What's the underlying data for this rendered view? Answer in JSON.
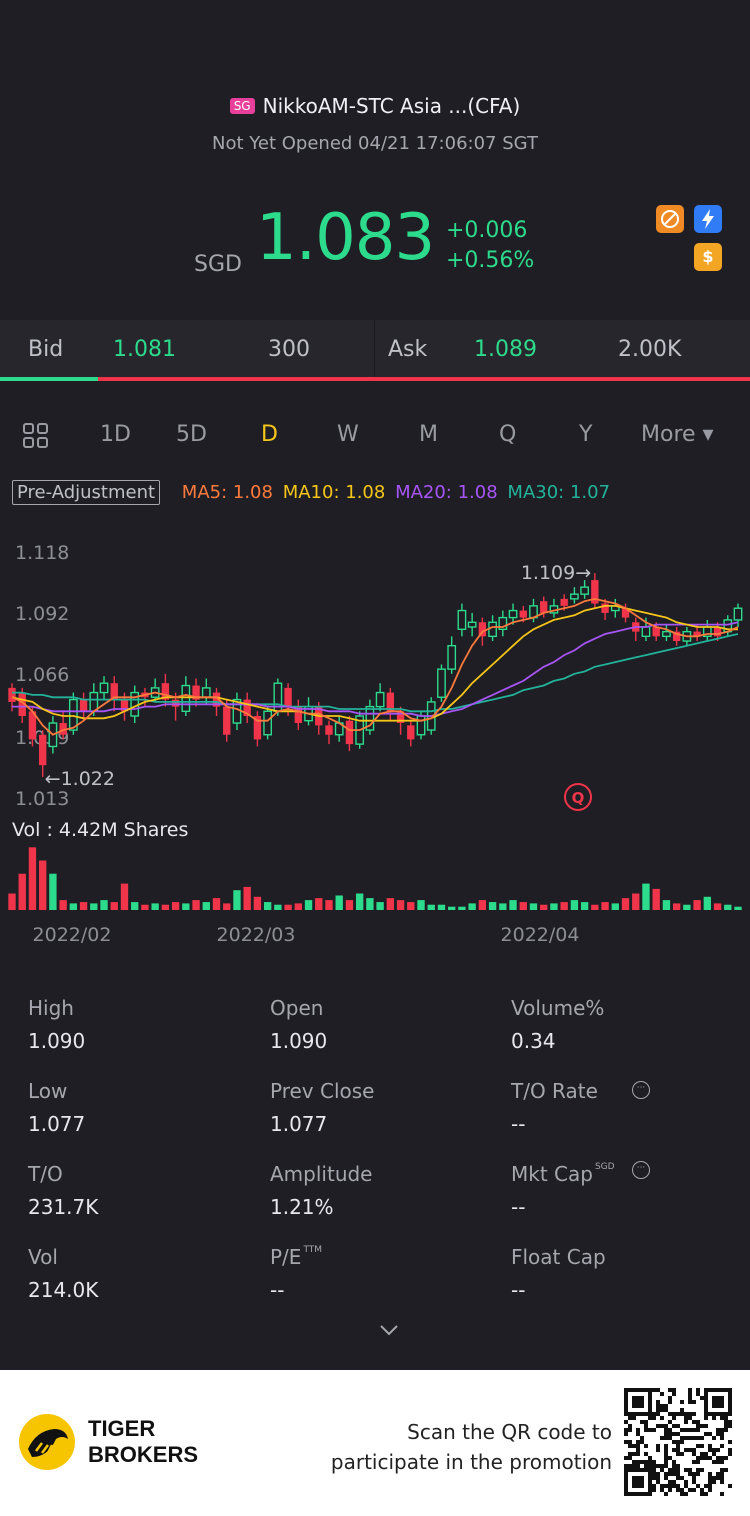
{
  "header": {
    "market_badge": "SG",
    "title": "NikkoAM-STC Asia ...(CFA)",
    "status": "Not Yet Opened 04/21 17:06:07 SGT",
    "currency": "SGD",
    "price": "1.083",
    "change": "+0.006",
    "change_pct": "+0.56%",
    "icons": [
      "no-shorting-icon",
      "flash-icon",
      "dollar-icon"
    ]
  },
  "bid_ask": {
    "bid_label": "Bid",
    "bid_price": "1.081",
    "bid_size": "300",
    "ask_label": "Ask",
    "ask_price": "1.089",
    "ask_size": "2.00K",
    "bid_ratio": 0.13
  },
  "chart_tabs": {
    "items": [
      "1D",
      "5D",
      "D",
      "W",
      "M",
      "Q",
      "Y",
      "More ▾"
    ],
    "active": "D"
  },
  "ma": {
    "pre_adjustment": "Pre-Adjustment",
    "ma5": "MA5: 1.08",
    "ma10": "MA10: 1.08",
    "ma20": "MA20: 1.08",
    "ma30": "MA30: 1.07"
  },
  "colors": {
    "up": "#2ddb8c",
    "down": "#f0344a",
    "ma5": "#ff7a3c",
    "ma10": "#f5c518",
    "ma20": "#a855f7",
    "ma30": "#22b39a",
    "accent": "#f5c518"
  },
  "chart_data": {
    "type": "candlestick",
    "y_ticks": [
      "1.118",
      "1.092",
      "1.066",
      "1.039",
      "1.013"
    ],
    "ylim": [
      1.013,
      1.118
    ],
    "x_ticks": [
      "2022/02",
      "2022/03",
      "2022/04"
    ],
    "high_label": "1.109",
    "low_label": "1.022",
    "volume_label": "Vol  : 4.42M Shares",
    "candles": [
      {
        "o": 1.06,
        "c": 1.054,
        "h": 1.062,
        "l": 1.05
      },
      {
        "o": 1.058,
        "c": 1.048,
        "h": 1.06,
        "l": 1.045
      },
      {
        "o": 1.05,
        "c": 1.038,
        "h": 1.052,
        "l": 1.035
      },
      {
        "o": 1.04,
        "c": 1.027,
        "h": 1.042,
        "l": 1.022
      },
      {
        "o": 1.035,
        "c": 1.045,
        "h": 1.048,
        "l": 1.032
      },
      {
        "o": 1.045,
        "c": 1.04,
        "h": 1.05,
        "l": 1.038
      },
      {
        "o": 1.042,
        "c": 1.055,
        "h": 1.058,
        "l": 1.04
      },
      {
        "o": 1.055,
        "c": 1.05,
        "h": 1.058,
        "l": 1.046
      },
      {
        "o": 1.05,
        "c": 1.058,
        "h": 1.062,
        "l": 1.048
      },
      {
        "o": 1.058,
        "c": 1.062,
        "h": 1.065,
        "l": 1.055
      },
      {
        "o": 1.062,
        "c": 1.055,
        "h": 1.065,
        "l": 1.05
      },
      {
        "o": 1.055,
        "c": 1.05,
        "h": 1.058,
        "l": 1.046
      },
      {
        "o": 1.048,
        "c": 1.058,
        "h": 1.061,
        "l": 1.045
      },
      {
        "o": 1.058,
        "c": 1.056,
        "h": 1.06,
        "l": 1.052
      },
      {
        "o": 1.056,
        "c": 1.06,
        "h": 1.064,
        "l": 1.054
      },
      {
        "o": 1.062,
        "c": 1.055,
        "h": 1.066,
        "l": 1.052
      },
      {
        "o": 1.055,
        "c": 1.052,
        "h": 1.058,
        "l": 1.046
      },
      {
        "o": 1.05,
        "c": 1.061,
        "h": 1.065,
        "l": 1.048
      },
      {
        "o": 1.061,
        "c": 1.055,
        "h": 1.064,
        "l": 1.052
      },
      {
        "o": 1.056,
        "c": 1.06,
        "h": 1.064,
        "l": 1.053
      },
      {
        "o": 1.058,
        "c": 1.052,
        "h": 1.06,
        "l": 1.048
      },
      {
        "o": 1.052,
        "c": 1.04,
        "h": 1.055,
        "l": 1.037
      },
      {
        "o": 1.045,
        "c": 1.055,
        "h": 1.058,
        "l": 1.042
      },
      {
        "o": 1.055,
        "c": 1.048,
        "h": 1.058,
        "l": 1.045
      },
      {
        "o": 1.048,
        "c": 1.038,
        "h": 1.05,
        "l": 1.035
      },
      {
        "o": 1.04,
        "c": 1.05,
        "h": 1.052,
        "l": 1.038
      },
      {
        "o": 1.05,
        "c": 1.062,
        "h": 1.064,
        "l": 1.048
      },
      {
        "o": 1.06,
        "c": 1.052,
        "h": 1.062,
        "l": 1.048
      },
      {
        "o": 1.052,
        "c": 1.045,
        "h": 1.055,
        "l": 1.042
      },
      {
        "o": 1.046,
        "c": 1.052,
        "h": 1.056,
        "l": 1.044
      },
      {
        "o": 1.052,
        "c": 1.044,
        "h": 1.054,
        "l": 1.04
      },
      {
        "o": 1.044,
        "c": 1.04,
        "h": 1.046,
        "l": 1.036
      },
      {
        "o": 1.04,
        "c": 1.045,
        "h": 1.048,
        "l": 1.037
      },
      {
        "o": 1.046,
        "c": 1.036,
        "h": 1.048,
        "l": 1.033
      },
      {
        "o": 1.036,
        "c": 1.048,
        "h": 1.05,
        "l": 1.034
      },
      {
        "o": 1.042,
        "c": 1.052,
        "h": 1.055,
        "l": 1.04
      },
      {
        "o": 1.052,
        "c": 1.058,
        "h": 1.062,
        "l": 1.05
      },
      {
        "o": 1.058,
        "c": 1.05,
        "h": 1.06,
        "l": 1.046
      },
      {
        "o": 1.05,
        "c": 1.045,
        "h": 1.052,
        "l": 1.04
      },
      {
        "o": 1.044,
        "c": 1.038,
        "h": 1.046,
        "l": 1.035
      },
      {
        "o": 1.04,
        "c": 1.048,
        "h": 1.05,
        "l": 1.038
      },
      {
        "o": 1.042,
        "c": 1.054,
        "h": 1.056,
        "l": 1.04
      },
      {
        "o": 1.056,
        "c": 1.068,
        "h": 1.07,
        "l": 1.054
      },
      {
        "o": 1.068,
        "c": 1.078,
        "h": 1.082,
        "l": 1.066
      },
      {
        "o": 1.085,
        "c": 1.093,
        "h": 1.096,
        "l": 1.082
      },
      {
        "o": 1.086,
        "c": 1.088,
        "h": 1.092,
        "l": 1.082
      },
      {
        "o": 1.088,
        "c": 1.082,
        "h": 1.09,
        "l": 1.078
      },
      {
        "o": 1.082,
        "c": 1.088,
        "h": 1.091,
        "l": 1.08
      },
      {
        "o": 1.085,
        "c": 1.09,
        "h": 1.093,
        "l": 1.082
      },
      {
        "o": 1.09,
        "c": 1.093,
        "h": 1.096,
        "l": 1.087
      },
      {
        "o": 1.093,
        "c": 1.09,
        "h": 1.095,
        "l": 1.088
      },
      {
        "o": 1.09,
        "c": 1.095,
        "h": 1.098,
        "l": 1.088
      },
      {
        "o": 1.097,
        "c": 1.092,
        "h": 1.099,
        "l": 1.09
      },
      {
        "o": 1.092,
        "c": 1.095,
        "h": 1.098,
        "l": 1.09
      },
      {
        "o": 1.098,
        "c": 1.095,
        "h": 1.1,
        "l": 1.093
      },
      {
        "o": 1.098,
        "c": 1.1,
        "h": 1.103,
        "l": 1.096
      },
      {
        "o": 1.1,
        "c": 1.103,
        "h": 1.106,
        "l": 1.098
      },
      {
        "o": 1.106,
        "c": 1.096,
        "h": 1.109,
        "l": 1.094
      },
      {
        "o": 1.096,
        "c": 1.092,
        "h": 1.098,
        "l": 1.089
      },
      {
        "o": 1.093,
        "c": 1.095,
        "h": 1.098,
        "l": 1.09
      },
      {
        "o": 1.094,
        "c": 1.09,
        "h": 1.096,
        "l": 1.088
      },
      {
        "o": 1.088,
        "c": 1.084,
        "h": 1.09,
        "l": 1.08
      },
      {
        "o": 1.082,
        "c": 1.086,
        "h": 1.09,
        "l": 1.08
      },
      {
        "o": 1.086,
        "c": 1.082,
        "h": 1.088,
        "l": 1.08
      },
      {
        "o": 1.082,
        "c": 1.084,
        "h": 1.087,
        "l": 1.08
      },
      {
        "o": 1.084,
        "c": 1.08,
        "h": 1.086,
        "l": 1.078
      },
      {
        "o": 1.08,
        "c": 1.084,
        "h": 1.086,
        "l": 1.078
      },
      {
        "o": 1.084,
        "c": 1.082,
        "h": 1.087,
        "l": 1.08
      },
      {
        "o": 1.082,
        "c": 1.086,
        "h": 1.089,
        "l": 1.08
      },
      {
        "o": 1.086,
        "c": 1.082,
        "h": 1.088,
        "l": 1.08
      },
      {
        "o": 1.084,
        "c": 1.089,
        "h": 1.091,
        "l": 1.082
      },
      {
        "o": 1.089,
        "c": 1.094,
        "h": 1.096,
        "l": 1.086
      }
    ],
    "ma5": [
      1.056,
      1.054,
      1.05,
      1.044,
      1.04,
      1.042,
      1.043,
      1.046,
      1.05,
      1.053,
      1.056,
      1.056,
      1.056,
      1.057,
      1.058,
      1.057,
      1.056,
      1.057,
      1.056,
      1.056,
      1.056,
      1.052,
      1.051,
      1.049,
      1.046,
      1.046,
      1.05,
      1.051,
      1.05,
      1.049,
      1.049,
      1.047,
      1.045,
      1.042,
      1.042,
      1.044,
      1.049,
      1.05,
      1.05,
      1.047,
      1.046,
      1.047,
      1.052,
      1.06,
      1.07,
      1.078,
      1.084,
      1.086,
      1.086,
      1.088,
      1.089,
      1.09,
      1.092,
      1.093,
      1.094,
      1.095,
      1.097,
      1.098,
      1.097,
      1.096,
      1.094,
      1.091,
      1.088,
      1.086,
      1.085,
      1.083,
      1.082,
      1.082,
      1.083,
      1.083,
      1.084,
      1.086
    ],
    "ma10": [
      1.056,
      1.055,
      1.054,
      1.051,
      1.049,
      1.048,
      1.048,
      1.047,
      1.047,
      1.047,
      1.048,
      1.05,
      1.052,
      1.054,
      1.055,
      1.056,
      1.056,
      1.056,
      1.056,
      1.056,
      1.056,
      1.055,
      1.054,
      1.053,
      1.052,
      1.051,
      1.05,
      1.05,
      1.05,
      1.049,
      1.048,
      1.048,
      1.048,
      1.047,
      1.046,
      1.046,
      1.046,
      1.046,
      1.046,
      1.046,
      1.046,
      1.047,
      1.049,
      1.053,
      1.057,
      1.062,
      1.066,
      1.07,
      1.074,
      1.078,
      1.082,
      1.085,
      1.087,
      1.089,
      1.09,
      1.091,
      1.093,
      1.094,
      1.095,
      1.095,
      1.094,
      1.093,
      1.092,
      1.091,
      1.09,
      1.088,
      1.087,
      1.086,
      1.086,
      1.086,
      1.085,
      1.085
    ],
    "ma20": [
      1.052,
      1.052,
      1.052,
      1.051,
      1.05,
      1.05,
      1.05,
      1.05,
      1.05,
      1.05,
      1.051,
      1.051,
      1.051,
      1.052,
      1.052,
      1.053,
      1.053,
      1.053,
      1.053,
      1.053,
      1.053,
      1.053,
      1.053,
      1.053,
      1.053,
      1.052,
      1.052,
      1.052,
      1.051,
      1.051,
      1.051,
      1.05,
      1.05,
      1.05,
      1.049,
      1.049,
      1.049,
      1.049,
      1.049,
      1.049,
      1.048,
      1.048,
      1.049,
      1.05,
      1.051,
      1.053,
      1.055,
      1.057,
      1.059,
      1.061,
      1.063,
      1.066,
      1.069,
      1.071,
      1.074,
      1.076,
      1.079,
      1.081,
      1.083,
      1.084,
      1.085,
      1.086,
      1.086,
      1.087,
      1.087,
      1.087,
      1.087,
      1.087,
      1.087,
      1.087,
      1.087,
      1.088
    ],
    "ma30": [
      1.058,
      1.058,
      1.057,
      1.057,
      1.056,
      1.056,
      1.056,
      1.055,
      1.055,
      1.055,
      1.055,
      1.055,
      1.055,
      1.055,
      1.054,
      1.054,
      1.054,
      1.054,
      1.054,
      1.054,
      1.054,
      1.053,
      1.053,
      1.053,
      1.053,
      1.053,
      1.053,
      1.052,
      1.052,
      1.052,
      1.052,
      1.052,
      1.051,
      1.051,
      1.051,
      1.051,
      1.051,
      1.051,
      1.051,
      1.05,
      1.05,
      1.05,
      1.051,
      1.051,
      1.052,
      1.053,
      1.054,
      1.055,
      1.056,
      1.057,
      1.059,
      1.06,
      1.061,
      1.063,
      1.064,
      1.066,
      1.067,
      1.069,
      1.07,
      1.071,
      1.072,
      1.073,
      1.074,
      1.075,
      1.076,
      1.077,
      1.078,
      1.079,
      1.08,
      1.081,
      1.082,
      1.083
    ],
    "volume": [
      0.25,
      0.55,
      0.95,
      0.75,
      0.55,
      0.15,
      0.1,
      0.12,
      0.1,
      0.15,
      0.12,
      0.4,
      0.12,
      0.08,
      0.1,
      0.08,
      0.12,
      0.1,
      0.15,
      0.12,
      0.18,
      0.1,
      0.3,
      0.35,
      0.2,
      0.12,
      0.08,
      0.08,
      0.1,
      0.15,
      0.18,
      0.15,
      0.22,
      0.15,
      0.25,
      0.18,
      0.12,
      0.18,
      0.15,
      0.12,
      0.15,
      0.08,
      0.08,
      0.05,
      0.05,
      0.1,
      0.15,
      0.12,
      0.1,
      0.15,
      0.12,
      0.1,
      0.08,
      0.1,
      0.12,
      0.15,
      0.12,
      0.08,
      0.12,
      0.1,
      0.18,
      0.25,
      0.4,
      0.32,
      0.15,
      0.1,
      0.08,
      0.15,
      0.2,
      0.1,
      0.08,
      0.05
    ]
  },
  "stats": {
    "high_label": "High",
    "high": "1.090",
    "open_label": "Open",
    "open": "1.090",
    "volume_pct_label": "Volume%",
    "volume_pct": "0.34",
    "low_label": "Low",
    "low": "1.077",
    "prev_close_label": "Prev Close",
    "prev_close": "1.077",
    "to_rate_label": "T/O Rate",
    "to_rate": "--",
    "to_label": "T/O",
    "to": "231.7K",
    "amplitude_label": "Amplitude",
    "amplitude": "1.21%",
    "mkt_cap_label": "Mkt Cap",
    "mkt_cap_sup": "SGD",
    "mkt_cap": "--",
    "vol_label": "Vol",
    "vol": "214.0K",
    "pe_label": "P/E",
    "pe_sup": "TTM",
    "pe": "--",
    "float_cap_label": "Float Cap",
    "float_cap": "--"
  },
  "footer": {
    "brand_line1": "TIGER",
    "brand_line2": "BROKERS",
    "promo_line1": "Scan the QR code to",
    "promo_line2": "participate in the promotion"
  }
}
